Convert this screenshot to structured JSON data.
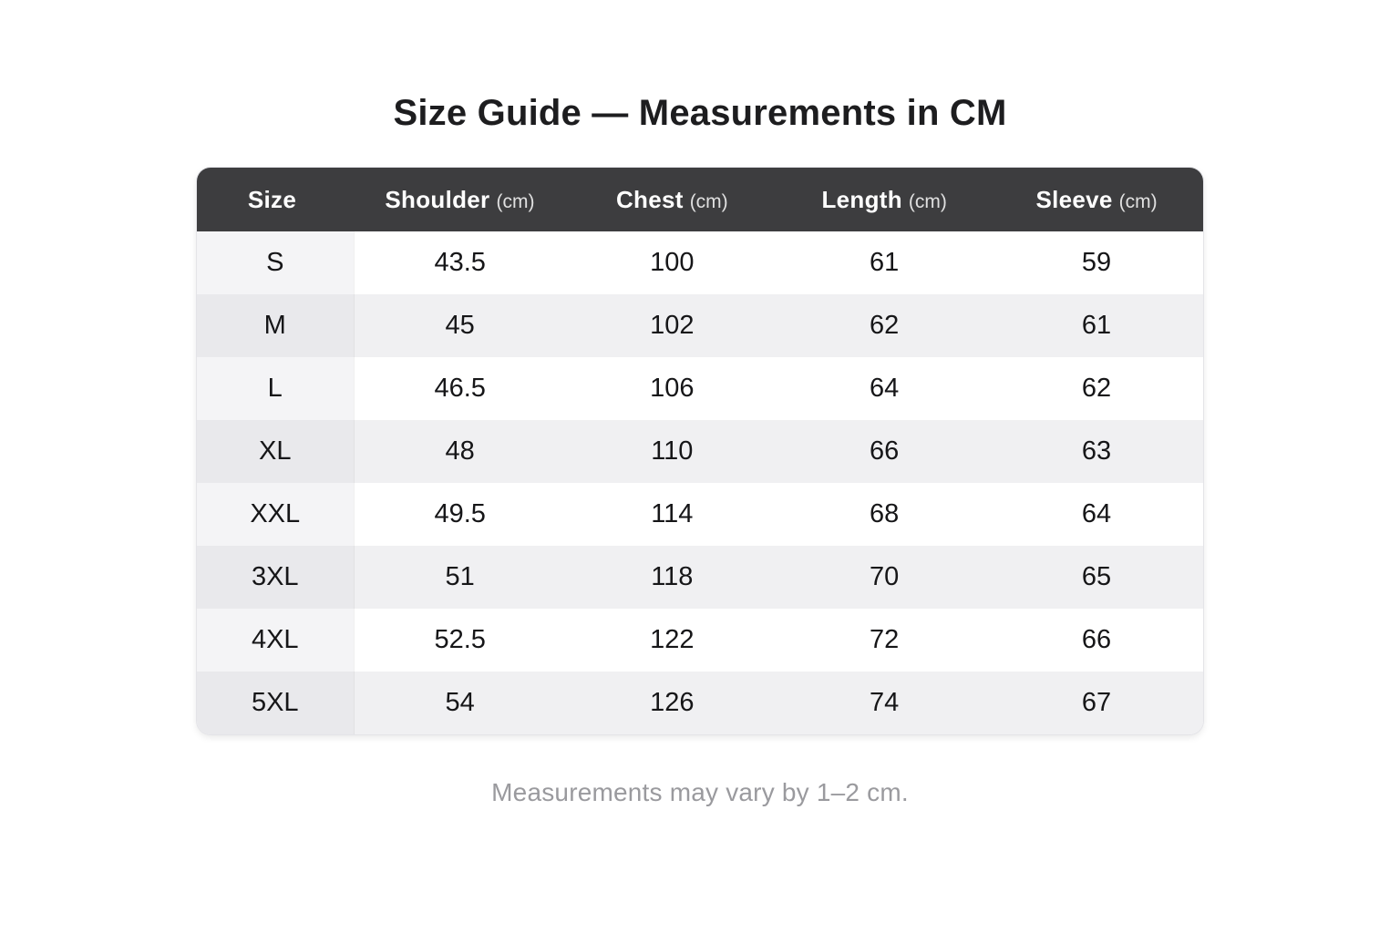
{
  "title": "Size Guide — Measurements in CM",
  "footnote": "Measurements may vary by 1–2 cm.",
  "colors": {
    "header_bg": "#3d3d3f",
    "header_text": "#ffffff",
    "stripe_bg": "#f0f0f2",
    "sizecol_bg": "#f4f4f6",
    "sizecol_stripe_bg": "#e9e9ec",
    "cell_text": "#161618",
    "title_color": "#1d1d1f",
    "footnote_color": "#9a9a9e"
  },
  "chart_data": {
    "type": "table",
    "title": "Size Guide — Measurements in CM",
    "columns": [
      {
        "label": "Size",
        "unit": ""
      },
      {
        "label": "Shoulder",
        "unit": "(cm)"
      },
      {
        "label": "Chest",
        "unit": "(cm)"
      },
      {
        "label": "Length",
        "unit": "(cm)"
      },
      {
        "label": "Sleeve",
        "unit": "(cm)"
      }
    ],
    "rows": [
      {
        "size": "S",
        "shoulder": "43.5",
        "chest": "100",
        "length": "61",
        "sleeve": "59"
      },
      {
        "size": "M",
        "shoulder": "45",
        "chest": "102",
        "length": "62",
        "sleeve": "61"
      },
      {
        "size": "L",
        "shoulder": "46.5",
        "chest": "106",
        "length": "64",
        "sleeve": "62"
      },
      {
        "size": "XL",
        "shoulder": "48",
        "chest": "110",
        "length": "66",
        "sleeve": "63"
      },
      {
        "size": "XXL",
        "shoulder": "49.5",
        "chest": "114",
        "length": "68",
        "sleeve": "64"
      },
      {
        "size": "3XL",
        "shoulder": "51",
        "chest": "118",
        "length": "70",
        "sleeve": "65"
      },
      {
        "size": "4XL",
        "shoulder": "52.5",
        "chest": "122",
        "length": "72",
        "sleeve": "66"
      },
      {
        "size": "5XL",
        "shoulder": "54",
        "chest": "126",
        "length": "74",
        "sleeve": "67"
      }
    ]
  }
}
